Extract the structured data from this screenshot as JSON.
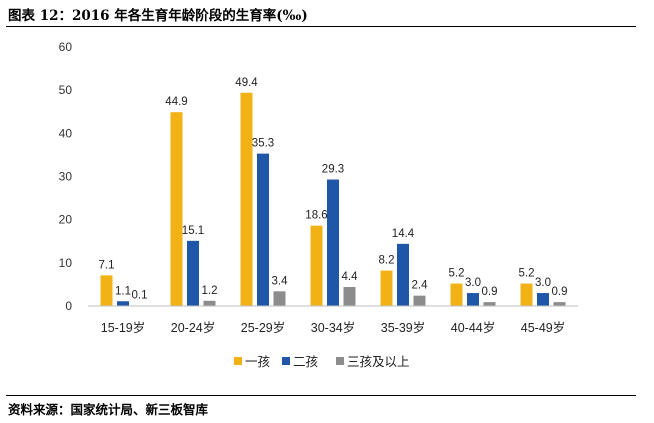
{
  "header": {
    "title": "图表 12：2016 年各生育年龄阶段的生育率(‰)"
  },
  "footer": {
    "source": "资料来源：国家统计局、新三板智库"
  },
  "colors": {
    "series0": "#F2B114",
    "series1": "#1F56A8",
    "series2": "#8C8C8C"
  },
  "chart_data": {
    "type": "bar",
    "title": "图表 12：2016 年各生育年龄阶段的生育率(‰)",
    "xlabel": "",
    "ylabel": "",
    "ylim": [
      0,
      60
    ],
    "yticks": [
      0,
      10,
      20,
      30,
      40,
      50,
      60
    ],
    "grid": false,
    "legend": "bottom",
    "categories": [
      "15-19岁",
      "20-24岁",
      "25-29岁",
      "30-34岁",
      "35-39岁",
      "40-44岁",
      "45-49岁"
    ],
    "series": [
      {
        "name": "一孩",
        "values": [
          7.1,
          44.9,
          49.4,
          18.6,
          8.2,
          5.2,
          5.2
        ]
      },
      {
        "name": "二孩",
        "values": [
          1.1,
          15.1,
          35.3,
          29.3,
          14.4,
          3.0,
          3.0
        ]
      },
      {
        "name": "三孩及以上",
        "values": [
          0.1,
          1.2,
          3.4,
          4.4,
          2.4,
          0.9,
          0.9
        ]
      }
    ]
  }
}
